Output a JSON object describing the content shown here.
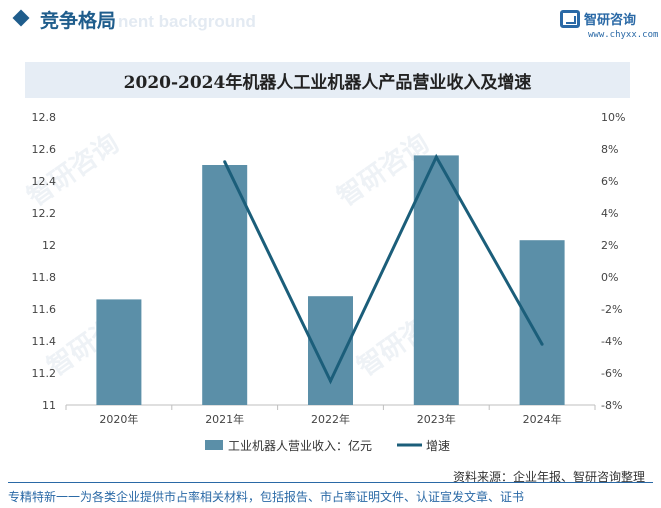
{
  "header": {
    "section_title": "竞争格局",
    "ghost_text": "nent background",
    "logo_text": "智研咨询",
    "logo_url": "www.chyxx.com"
  },
  "watermark": "智研咨询",
  "chart_data": {
    "type": "bar",
    "title": "2020-2024年机器人工业机器人产品营业收入及增速",
    "categories": [
      "2020年",
      "2021年",
      "2022年",
      "2023年",
      "2024年"
    ],
    "series": [
      {
        "name": "工业机器人营业收入：亿元",
        "kind": "bar",
        "axis": "left",
        "color": "#5b8fa8",
        "values": [
          11.66,
          12.5,
          11.68,
          12.56,
          12.03
        ]
      },
      {
        "name": "增速",
        "kind": "line",
        "axis": "right",
        "color": "#1b5e7a",
        "values": [
          null,
          7.2,
          -6.5,
          7.5,
          -4.2
        ]
      }
    ],
    "ylim_left": [
      11,
      12.8
    ],
    "yticks_left": [
      "11",
      "11.2",
      "11.4",
      "11.6",
      "11.8",
      "12",
      "12.2",
      "12.4",
      "12.6",
      "12.8"
    ],
    "ylim_right": [
      -8,
      10
    ],
    "yticks_right": [
      "-8%",
      "-6%",
      "-4%",
      "-2%",
      "0%",
      "2%",
      "4%",
      "6%",
      "8%",
      "10%"
    ],
    "grid": false,
    "legend_position": "bottom"
  },
  "source": "资料来源：企业年报、智研咨询整理",
  "footer": "专精特新一一为各类企业提供市占率相关材料，包括报告、市占率证明文件、认证宣发文章、证书"
}
